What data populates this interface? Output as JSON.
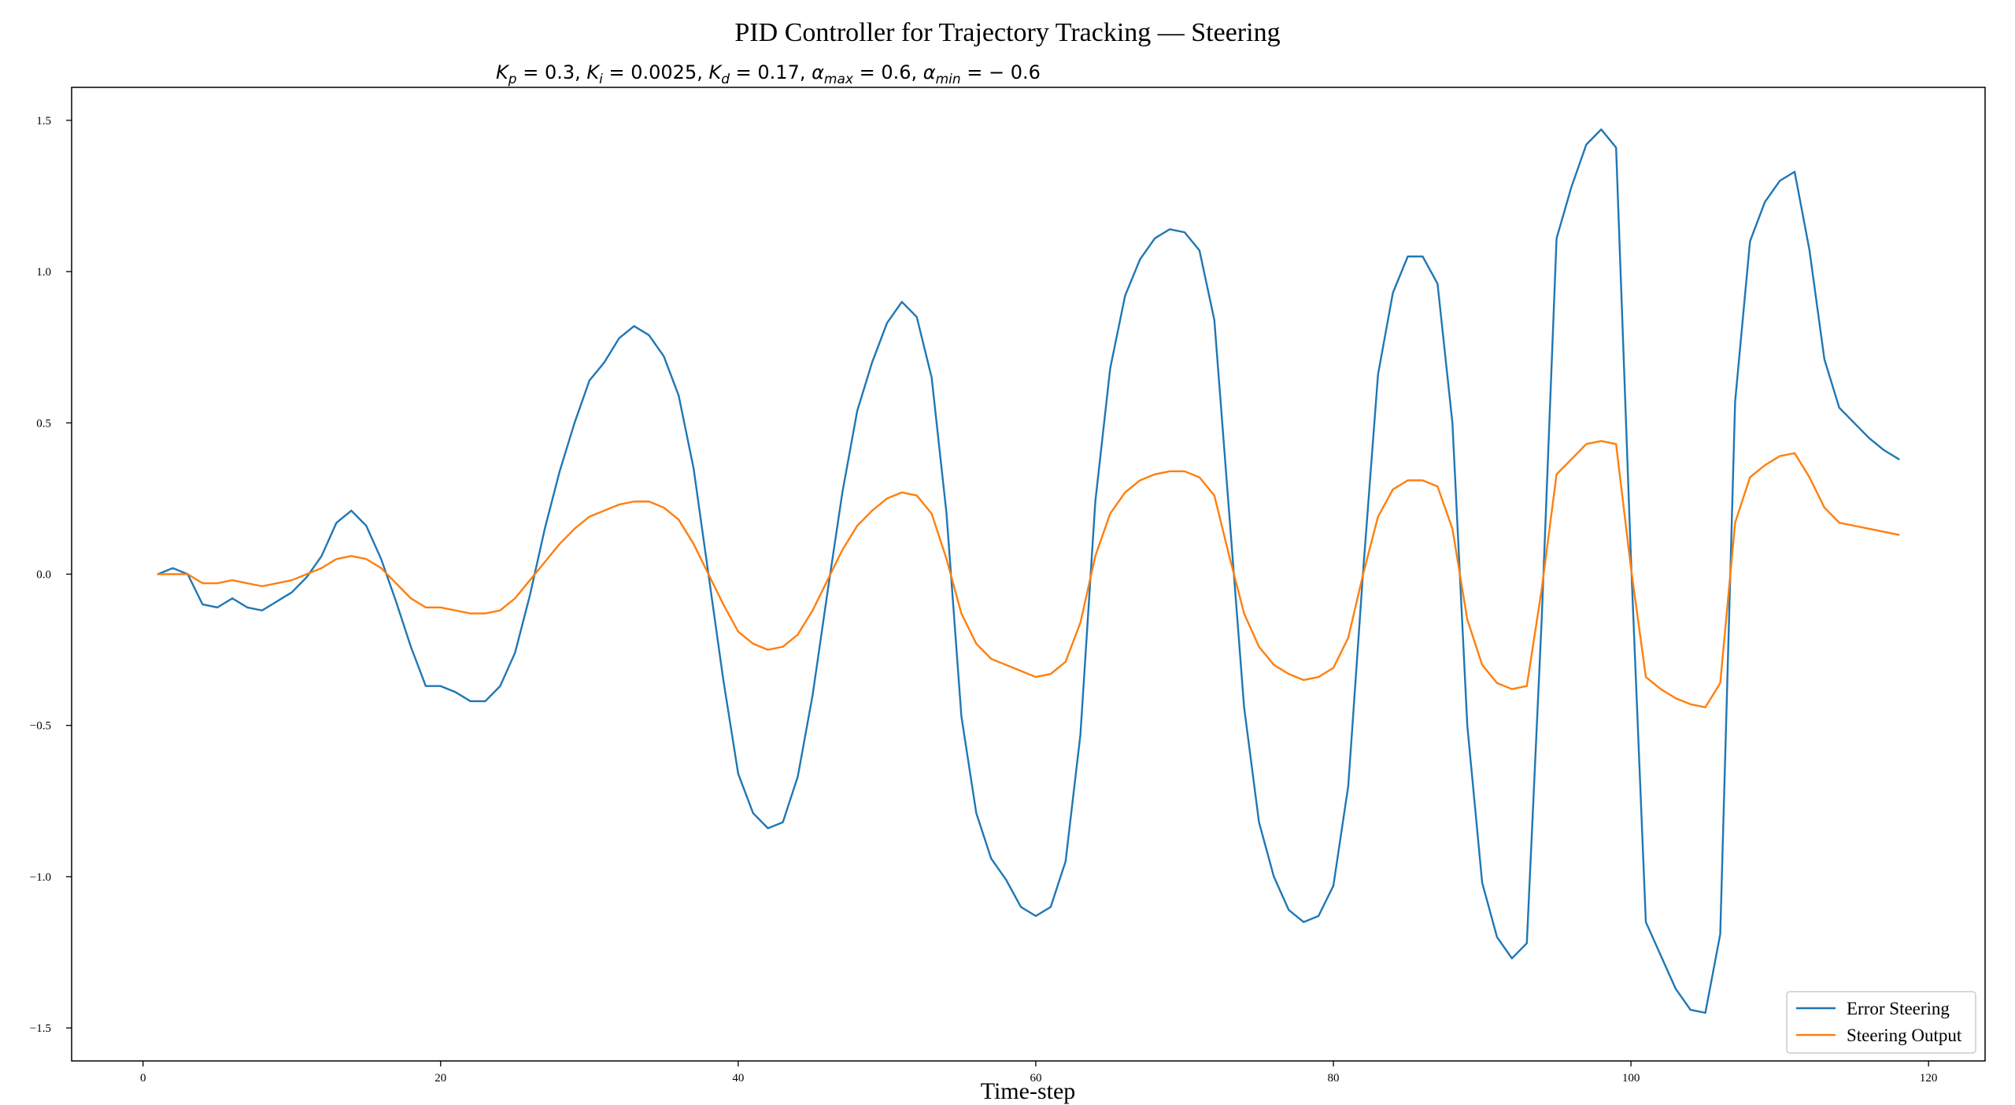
{
  "chart_data": {
    "type": "line",
    "title": "PID Controller for Trajectory Tracking — Steering",
    "subtitle": {
      "parts": [
        {
          "sym": "K",
          "sub": "p",
          "val": " = 0.3,  "
        },
        {
          "sym": "K",
          "sub": "i",
          "val": " = 0.0025, "
        },
        {
          "sym": "K",
          "sub": "d",
          "val": " = 0.17,  "
        },
        {
          "sym": "α",
          "sub": "max",
          "val": " = 0.6,  "
        },
        {
          "sym": "α",
          "sub": "min",
          "val": " = − 0.6"
        }
      ]
    },
    "xlabel": "Time-step",
    "ylabel": "",
    "xlim": [
      -4.8,
      123.8
    ],
    "ylim": [
      -1.609,
      1.609
    ],
    "x_ticks": [
      0,
      20,
      40,
      60,
      80,
      100,
      120
    ],
    "y_ticks": [
      -1.5,
      -1.0,
      -0.5,
      0.0,
      0.5,
      1.0,
      1.5
    ],
    "x_tick_labels": [
      "0",
      "20",
      "40",
      "60",
      "80",
      "100",
      "120"
    ],
    "y_tick_labels": [
      "−1.5",
      "−1.0",
      "−0.5",
      "0.0",
      "0.5",
      "1.0",
      "1.5"
    ],
    "grid": false,
    "legend_position": "bottom-right",
    "x": [
      1,
      2,
      3,
      4,
      5,
      6,
      7,
      8,
      9,
      10,
      11,
      12,
      13,
      14,
      15,
      16,
      17,
      18,
      19,
      20,
      21,
      22,
      23,
      24,
      25,
      26,
      27,
      28,
      29,
      30,
      31,
      32,
      33,
      34,
      35,
      36,
      37,
      38,
      39,
      40,
      41,
      42,
      43,
      44,
      45,
      46,
      47,
      48,
      49,
      50,
      51,
      52,
      53,
      54,
      55,
      56,
      57,
      58,
      59,
      60,
      61,
      62,
      63,
      64,
      65,
      66,
      67,
      68,
      69,
      70,
      71,
      72,
      73,
      74,
      75,
      76,
      77,
      78,
      79,
      80,
      81,
      82,
      83,
      84,
      85,
      86,
      87,
      88,
      89,
      90,
      91,
      92,
      93,
      94,
      95,
      96,
      97,
      98,
      99,
      100,
      101,
      102,
      103,
      104,
      105,
      106,
      107,
      108,
      109,
      110,
      111,
      112,
      113,
      114,
      115,
      116,
      117,
      118
    ],
    "series": [
      {
        "name": "Error Steering",
        "color": "#1f77b4",
        "values": [
          0.0,
          0.02,
          0.0,
          -0.1,
          -0.11,
          -0.08,
          -0.11,
          -0.12,
          -0.09,
          -0.06,
          -0.01,
          0.06,
          0.17,
          0.21,
          0.16,
          0.05,
          -0.09,
          -0.24,
          -0.37,
          -0.37,
          -0.39,
          -0.42,
          -0.42,
          -0.37,
          -0.26,
          -0.07,
          0.15,
          0.34,
          0.5,
          0.64,
          0.7,
          0.78,
          0.82,
          0.79,
          0.72,
          0.59,
          0.35,
          0.0,
          -0.35,
          -0.66,
          -0.79,
          -0.84,
          -0.82,
          -0.67,
          -0.4,
          -0.06,
          0.27,
          0.54,
          0.7,
          0.83,
          0.9,
          0.85,
          0.65,
          0.2,
          -0.47,
          -0.79,
          -0.94,
          -1.01,
          -1.1,
          -1.13,
          -1.1,
          -0.95,
          -0.53,
          0.24,
          0.68,
          0.92,
          1.04,
          1.11,
          1.14,
          1.13,
          1.07,
          0.84,
          0.2,
          -0.44,
          -0.82,
          -1.0,
          -1.11,
          -1.15,
          -1.13,
          -1.03,
          -0.7,
          0.01,
          0.66,
          0.93,
          1.05,
          1.05,
          0.96,
          0.5,
          -0.5,
          -1.02,
          -1.2,
          -1.27,
          -1.22,
          -0.15,
          1.11,
          1.28,
          1.42,
          1.47,
          1.41,
          0.05,
          -1.15,
          -1.26,
          -1.37,
          -1.44,
          -1.45,
          -1.19,
          0.57,
          1.1,
          1.23,
          1.3,
          1.33,
          1.07,
          0.71,
          0.55,
          0.5,
          0.45,
          0.41,
          0.38
        ]
      },
      {
        "name": "Steering Output",
        "color": "#ff7f0e",
        "values": [
          0.0,
          0.0,
          0.0,
          -0.03,
          -0.03,
          -0.02,
          -0.03,
          -0.04,
          -0.03,
          -0.02,
          0.0,
          0.02,
          0.05,
          0.06,
          0.05,
          0.02,
          -0.03,
          -0.08,
          -0.11,
          -0.11,
          -0.12,
          -0.13,
          -0.13,
          -0.12,
          -0.08,
          -0.02,
          0.04,
          0.1,
          0.15,
          0.19,
          0.21,
          0.23,
          0.24,
          0.24,
          0.22,
          0.18,
          0.1,
          0.0,
          -0.1,
          -0.19,
          -0.23,
          -0.25,
          -0.24,
          -0.2,
          -0.12,
          -0.02,
          0.08,
          0.16,
          0.21,
          0.25,
          0.27,
          0.26,
          0.2,
          0.05,
          -0.13,
          -0.23,
          -0.28,
          -0.3,
          -0.32,
          -0.34,
          -0.33,
          -0.29,
          -0.16,
          0.06,
          0.2,
          0.27,
          0.31,
          0.33,
          0.34,
          0.34,
          0.32,
          0.26,
          0.06,
          -0.13,
          -0.24,
          -0.3,
          -0.33,
          -0.35,
          -0.34,
          -0.31,
          -0.21,
          0.0,
          0.19,
          0.28,
          0.31,
          0.31,
          0.29,
          0.15,
          -0.15,
          -0.3,
          -0.36,
          -0.38,
          -0.37,
          -0.05,
          0.33,
          0.38,
          0.43,
          0.44,
          0.43,
          0.02,
          -0.34,
          -0.38,
          -0.41,
          -0.43,
          -0.44,
          -0.36,
          0.17,
          0.32,
          0.36,
          0.39,
          0.4,
          0.32,
          0.22,
          0.17,
          0.16,
          0.15,
          0.14,
          0.13
        ]
      }
    ]
  }
}
